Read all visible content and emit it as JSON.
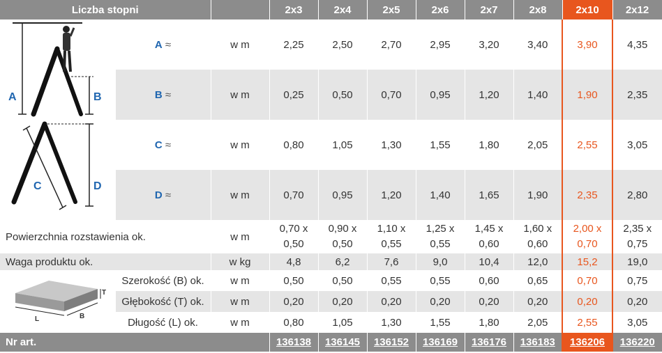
{
  "header": {
    "title": "Liczba stopni",
    "sizes": [
      "2x3",
      "2x4",
      "2x5",
      "2x6",
      "2x7",
      "2x8",
      "2x10",
      "2x12"
    ]
  },
  "units": {
    "m": "w m",
    "kg": "w kg"
  },
  "dims": [
    {
      "letter": "A",
      "suffix": " ≈",
      "values": [
        "2,25",
        "2,50",
        "2,70",
        "2,95",
        "3,20",
        "3,40",
        "3,90",
        "4,35"
      ]
    },
    {
      "letter": "B",
      "suffix": " ≈",
      "values": [
        "0,25",
        "0,50",
        "0,70",
        "0,95",
        "1,20",
        "1,40",
        "1,90",
        "2,35"
      ]
    },
    {
      "letter": "C",
      "suffix": " ≈",
      "values": [
        "0,80",
        "1,05",
        "1,30",
        "1,55",
        "1,80",
        "2,05",
        "2,55",
        "3,05"
      ]
    },
    {
      "letter": "D",
      "suffix": " ≈",
      "values": [
        "0,70",
        "0,95",
        "1,20",
        "1,40",
        "1,65",
        "1,90",
        "2,35",
        "2,80"
      ]
    }
  ],
  "area": {
    "label": "Powierzchnia rozstawienia ok.",
    "top": [
      "0,70 x",
      "0,90 x",
      "1,10 x",
      "1,25 x",
      "1,45 x",
      "1,60 x",
      "2,00 x",
      "2,35 x"
    ],
    "bottom": [
      "0,50",
      "0,50",
      "0,55",
      "0,55",
      "0,60",
      "0,60",
      "0,70",
      "0,75"
    ]
  },
  "weight": {
    "label": "Waga produktu ok.",
    "values": [
      "4,8",
      "6,2",
      "7,6",
      "9,0",
      "10,4",
      "12,0",
      "15,2",
      "19,0"
    ]
  },
  "package": [
    {
      "label": "Szerokość (B) ok.",
      "values": [
        "0,50",
        "0,50",
        "0,55",
        "0,55",
        "0,60",
        "0,65",
        "0,70",
        "0,75"
      ]
    },
    {
      "label": "Głębokość (T) ok.",
      "values": [
        "0,20",
        "0,20",
        "0,20",
        "0,20",
        "0,20",
        "0,20",
        "0,20",
        "0,20"
      ]
    },
    {
      "label": "Długość (L) ok.",
      "values": [
        "0,80",
        "1,05",
        "1,30",
        "1,55",
        "1,80",
        "2,05",
        "2,55",
        "3,05"
      ]
    }
  ],
  "articles": {
    "label": "Nr art.",
    "values": [
      "136138",
      "136145",
      "136152",
      "136169",
      "136176",
      "136183",
      "136206",
      "136220"
    ]
  },
  "diagram_letters": {
    "a": "A",
    "b": "B",
    "c": "C",
    "d": "D",
    "t": "T",
    "l": "L",
    "bb": "B"
  },
  "colors": {
    "header": "#8c8c8c",
    "highlight": "#e8561e",
    "row_alt": "#e5e5e5",
    "label_blue": "#2066b0"
  }
}
